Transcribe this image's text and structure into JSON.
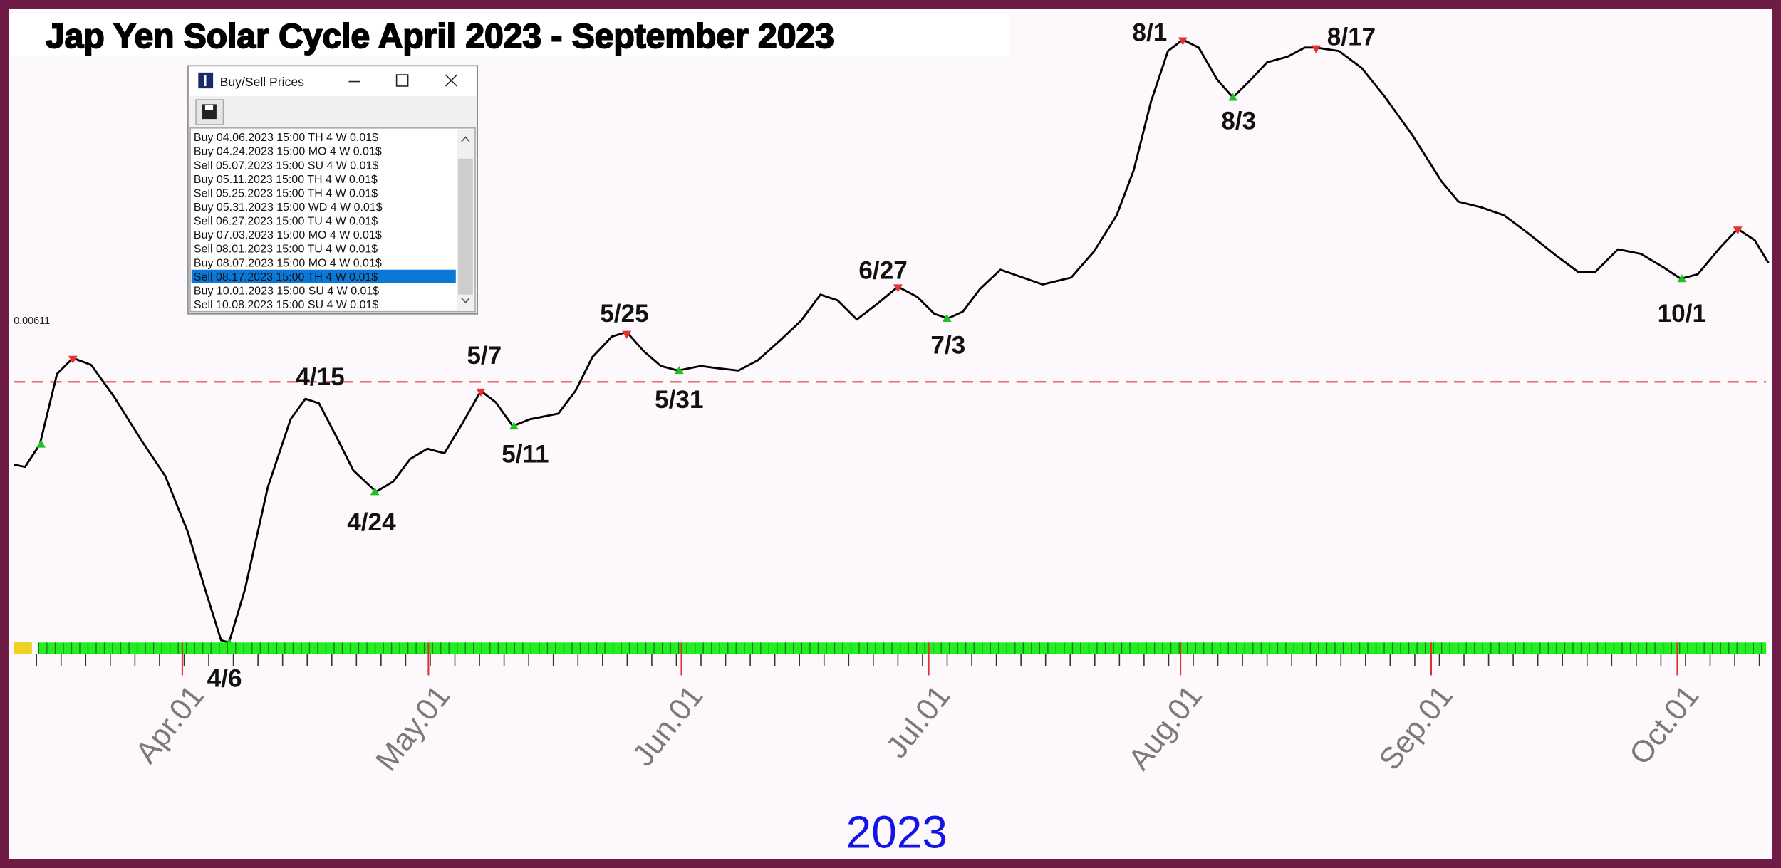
{
  "title": "Jap Yen Solar Cycle April 2023 - September 2023",
  "price_label": "0.00611",
  "year": "2023",
  "x_axis_labels": [
    "Apr.01",
    "May.01",
    "Jun.01",
    "Jul.01",
    "Aug.01",
    "Sep.01",
    "Oct.01"
  ],
  "turning_points": [
    "4/6",
    "4/15",
    "4/24",
    "5/7",
    "5/11",
    "5/25",
    "5/31",
    "6/27",
    "7/3",
    "8/1",
    "8/3",
    "8/17",
    "10/1"
  ],
  "window": {
    "title": "Buy/Sell Prices",
    "selected_row": 10,
    "rows": [
      "Buy 04.06.2023  15:00 TH  4 W  0.01$",
      "Buy 04.24.2023  15:00 MO  4 W  0.01$",
      "Sell 05.07.2023  15:00 SU  4 W  0.01$",
      "Buy 05.11.2023  15:00 TH  4 W  0.01$",
      "Sell 05.25.2023  15:00 TH  4 W  0.01$",
      "Buy 05.31.2023  15:00 WD  4 W  0.01$",
      "Sell 06.27.2023  15:00 TU  4 W  0.01$",
      "Buy 07.03.2023  15:00 MO  4 W  0.01$",
      "Sell 08.01.2023  15:00 TU  4 W  0.01$",
      "Buy 08.07.2023  15:00 MO  4 W  0.01$",
      "Sell 08.17.2023  15:00 TH  4 W  0.01$",
      "Buy 10.01.2023  15:00 SU  4 W  0.01$",
      "Sell 10.08.2023  15:00 SU  4 W  0.01$"
    ]
  }
}
